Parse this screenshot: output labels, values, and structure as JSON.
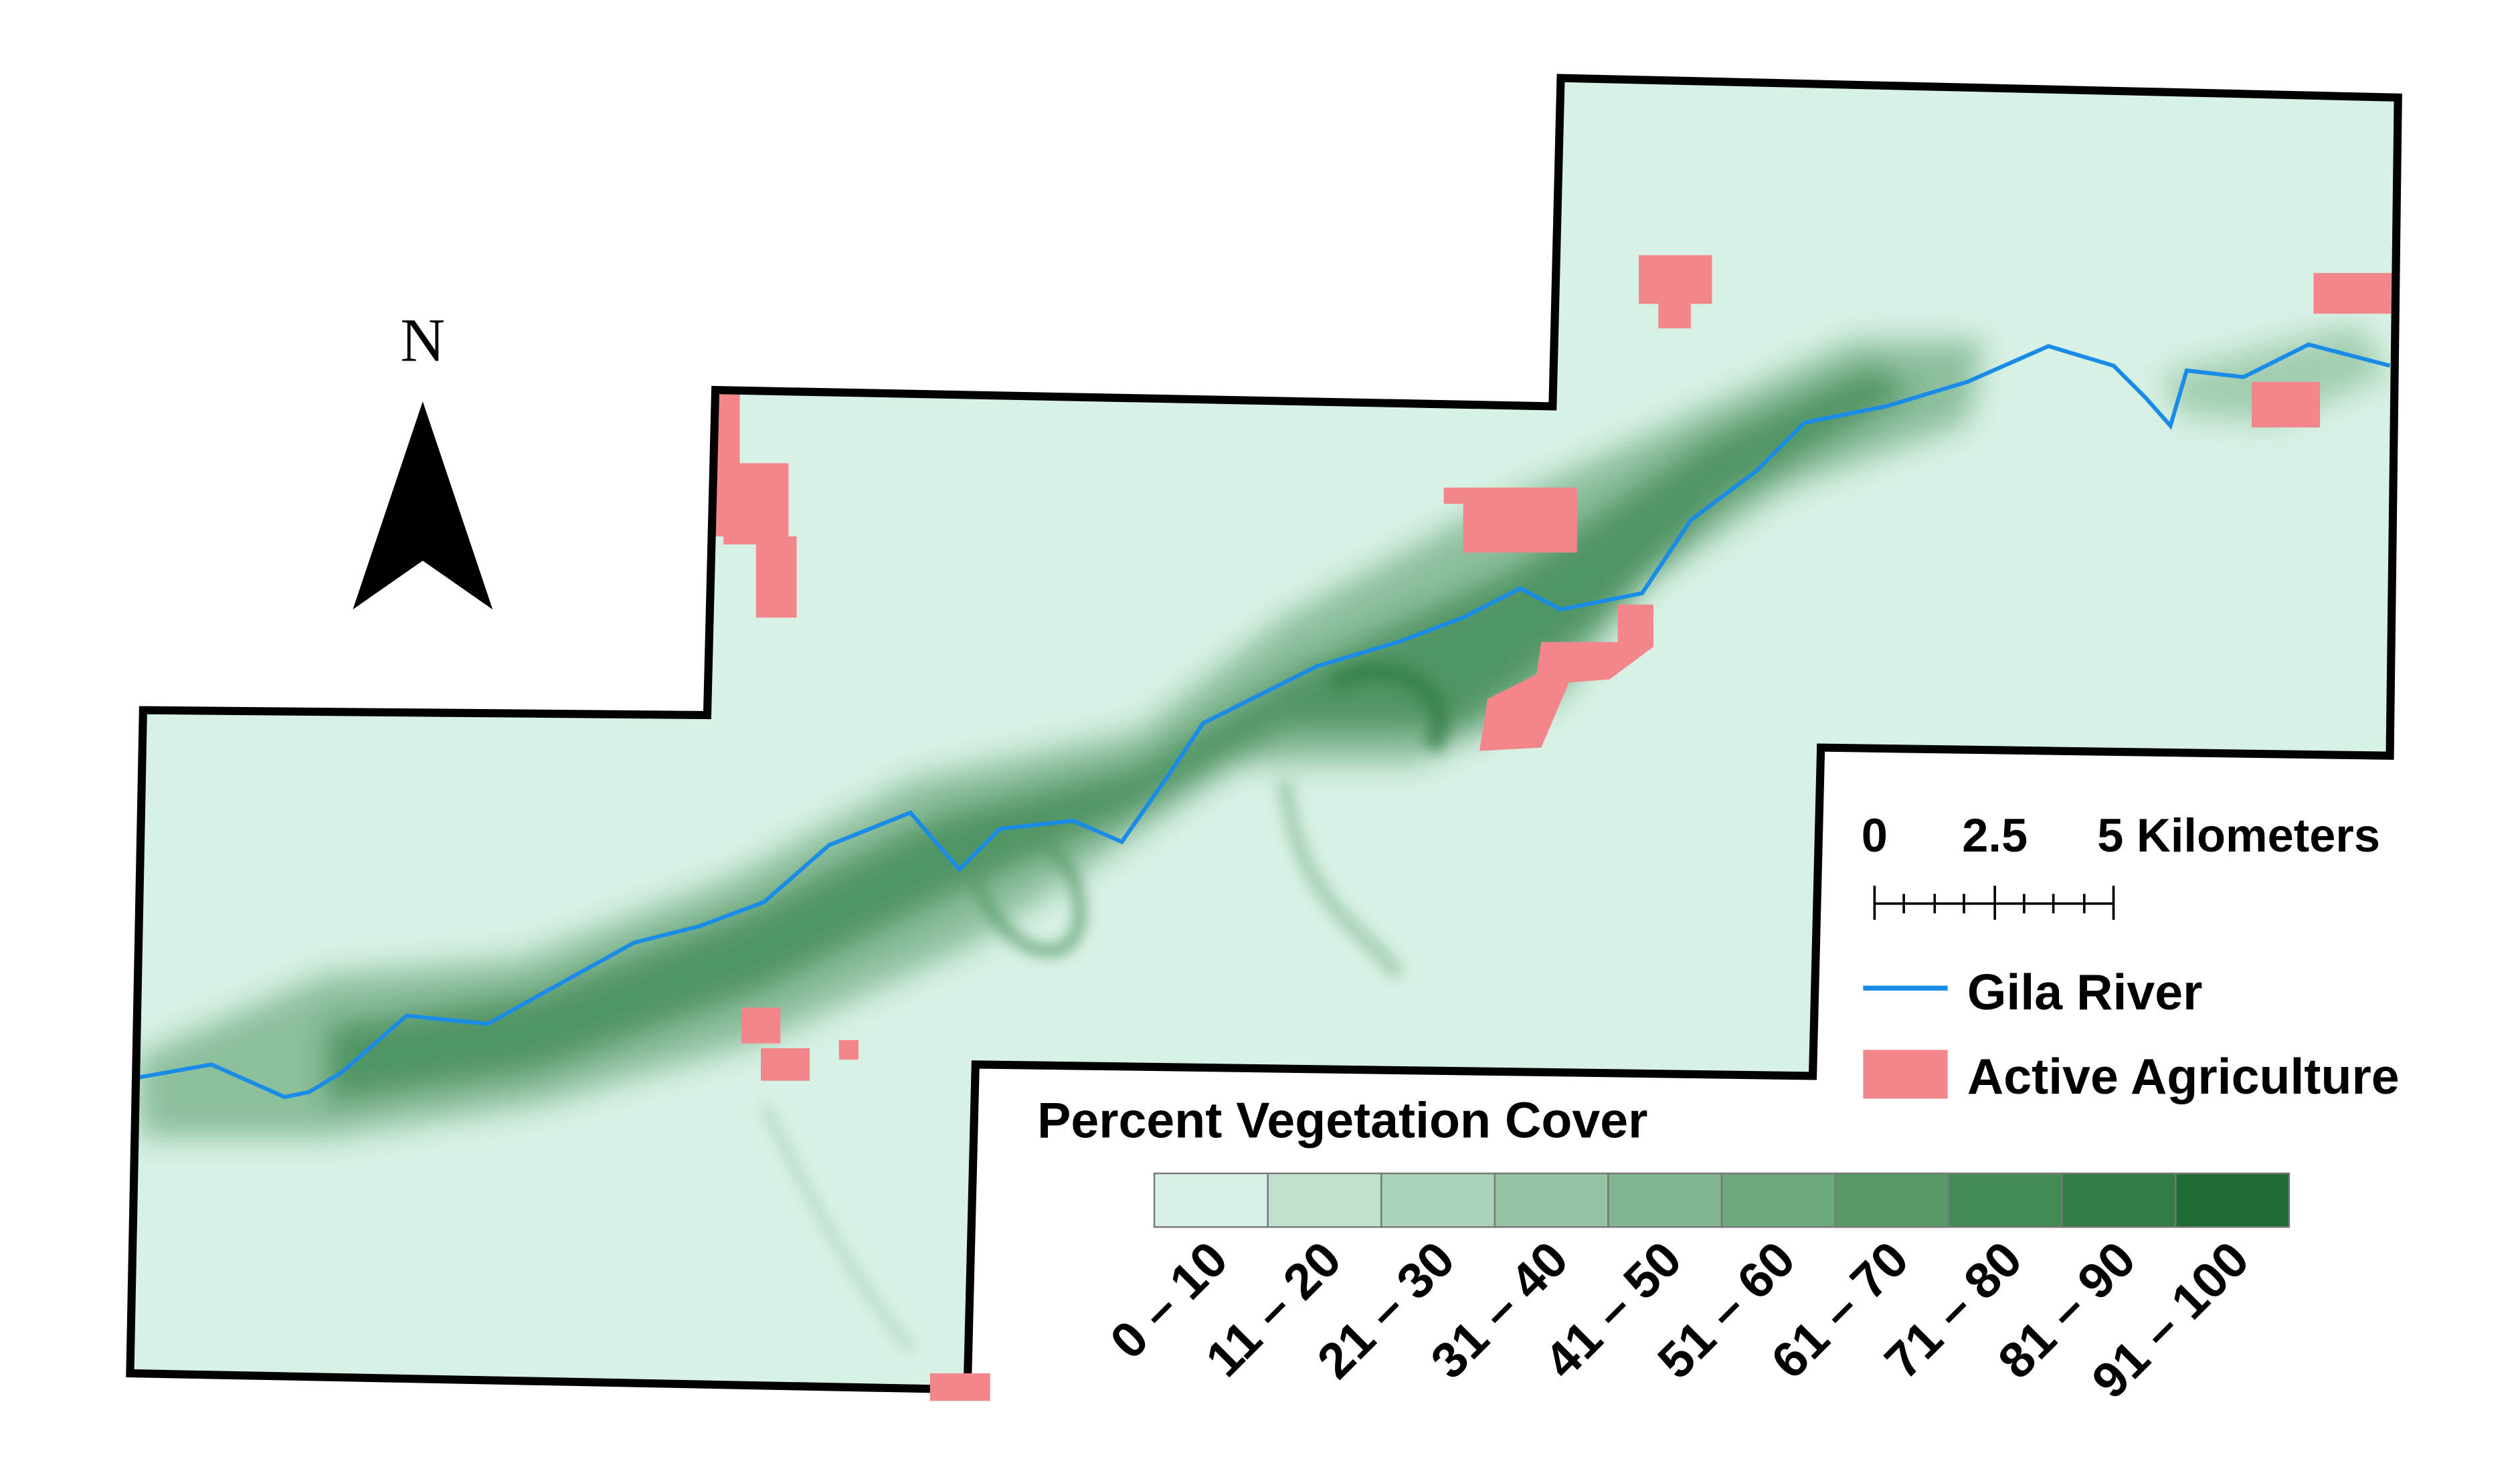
{
  "north_arrow": {
    "label": "N"
  },
  "scale_bar": {
    "labels": [
      "0",
      "2.5",
      "5 Kilometers"
    ]
  },
  "legend": {
    "items": [
      {
        "label": "Gila River",
        "color": "#1a8be6"
      },
      {
        "label": "Active Agriculture",
        "color": "#f3868a"
      }
    ],
    "ramp_title": "Percent Vegetation Cover",
    "classes": [
      {
        "label": "0 – 10",
        "color": "#d8f1e5"
      },
      {
        "label": "11 – 20",
        "color": "#c0e1cd"
      },
      {
        "label": "21 – 30",
        "color": "#a9d2b8"
      },
      {
        "label": "31 – 40",
        "color": "#94c4a3"
      },
      {
        "label": "41 – 50",
        "color": "#7fb68f"
      },
      {
        "label": "51 – 60",
        "color": "#6ba87b"
      },
      {
        "label": "61 – 70",
        "color": "#579a68"
      },
      {
        "label": "71 – 80",
        "color": "#448b56"
      },
      {
        "label": "81 – 90",
        "color": "#317c45"
      },
      {
        "label": "91 – 100",
        "color": "#206c35"
      }
    ]
  }
}
